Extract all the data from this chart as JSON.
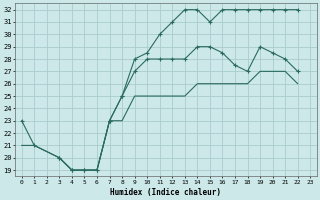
{
  "title": "",
  "xlabel": "Humidex (Indice chaleur)",
  "bg_color": "#cce8e8",
  "grid_color": "#aacccc",
  "line_color": "#2a6b5e",
  "xlim": [
    -0.5,
    23.5
  ],
  "ylim": [
    18.5,
    32.5
  ],
  "xticks": [
    0,
    1,
    2,
    3,
    4,
    5,
    6,
    7,
    8,
    9,
    10,
    11,
    12,
    13,
    14,
    15,
    16,
    17,
    18,
    19,
    20,
    21,
    22,
    23
  ],
  "yticks": [
    19,
    20,
    21,
    22,
    23,
    24,
    25,
    26,
    27,
    28,
    29,
    30,
    31,
    32
  ],
  "line1_x": [
    0,
    1,
    3,
    4,
    5,
    6,
    7,
    8,
    9,
    10,
    11,
    12,
    13,
    14,
    15,
    16,
    17,
    18,
    19,
    20,
    21,
    22
  ],
  "line1_y": [
    23,
    21,
    20,
    19,
    19,
    19,
    23,
    25,
    28,
    28.5,
    30,
    31,
    32,
    32,
    31,
    32,
    32,
    32,
    32,
    32,
    32,
    32
  ],
  "line2_x": [
    3,
    4,
    5,
    6,
    7,
    8,
    9,
    10,
    11,
    12,
    13,
    14,
    15,
    16,
    17,
    18,
    19,
    20,
    21,
    22
  ],
  "line2_y": [
    20,
    19,
    19,
    19,
    23,
    25,
    27,
    28,
    28,
    28,
    28,
    29,
    29,
    28.5,
    27.5,
    27,
    29,
    28.5,
    28,
    27
  ],
  "line3_x": [
    0,
    1,
    3,
    4,
    5,
    6,
    7,
    8,
    9,
    10,
    11,
    12,
    13,
    14,
    15,
    16,
    17,
    18,
    19,
    20,
    21,
    22
  ],
  "line3_y": [
    21,
    21,
    20,
    19,
    19,
    19,
    23,
    23,
    25,
    25,
    25,
    25,
    25,
    26,
    26,
    26,
    26,
    26,
    27,
    27,
    27,
    26
  ]
}
